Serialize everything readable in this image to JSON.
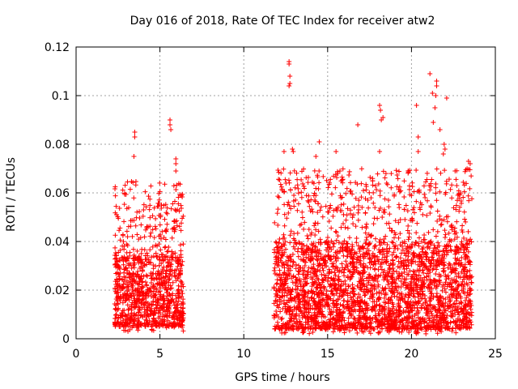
{
  "chart_data": {
    "type": "scatter",
    "title": "Day 016 of 2018, Rate Of TEC Index for receiver atw2",
    "xlabel": "GPS time / hours",
    "ylabel": "ROTI / TECUs",
    "xlim": [
      0,
      25
    ],
    "ylim": [
      0,
      0.12
    ],
    "x_ticks": [
      "0",
      "5",
      "10",
      "15",
      "20",
      "25"
    ],
    "y_ticks": [
      "0",
      "0.02",
      "0.04",
      "0.06",
      "0.08",
      "0.1",
      "0.12"
    ],
    "grid": true,
    "marker": "+",
    "color": "#ff0000",
    "segments": [
      {
        "x_start": 2.3,
        "x_end": 6.4,
        "base_y": [
          0.005,
          0.035
        ],
        "typical_peak": 0.065
      },
      {
        "x_start": 11.8,
        "x_end": 23.6,
        "base_y": [
          0.004,
          0.04
        ],
        "typical_peak": 0.07
      }
    ],
    "outliers": [
      {
        "x": 3.5,
        "y": 0.085
      },
      {
        "x": 3.5,
        "y": 0.083
      },
      {
        "x": 3.45,
        "y": 0.075
      },
      {
        "x": 5.6,
        "y": 0.09
      },
      {
        "x": 5.6,
        "y": 0.088
      },
      {
        "x": 5.65,
        "y": 0.086
      },
      {
        "x": 5.95,
        "y": 0.074
      },
      {
        "x": 5.95,
        "y": 0.072
      },
      {
        "x": 5.95,
        "y": 0.069
      },
      {
        "x": 12.7,
        "y": 0.114
      },
      {
        "x": 12.7,
        "y": 0.113
      },
      {
        "x": 12.75,
        "y": 0.108
      },
      {
        "x": 12.75,
        "y": 0.105
      },
      {
        "x": 12.7,
        "y": 0.104
      },
      {
        "x": 12.9,
        "y": 0.078
      },
      {
        "x": 12.95,
        "y": 0.077
      },
      {
        "x": 12.4,
        "y": 0.077
      },
      {
        "x": 14.5,
        "y": 0.081
      },
      {
        "x": 14.3,
        "y": 0.075
      },
      {
        "x": 15.5,
        "y": 0.077
      },
      {
        "x": 16.8,
        "y": 0.088
      },
      {
        "x": 18.1,
        "y": 0.096
      },
      {
        "x": 18.15,
        "y": 0.094
      },
      {
        "x": 18.2,
        "y": 0.09
      },
      {
        "x": 18.3,
        "y": 0.091
      },
      {
        "x": 18.1,
        "y": 0.077
      },
      {
        "x": 20.3,
        "y": 0.096
      },
      {
        "x": 20.4,
        "y": 0.083
      },
      {
        "x": 20.4,
        "y": 0.077
      },
      {
        "x": 21.1,
        "y": 0.109
      },
      {
        "x": 21.25,
        "y": 0.101
      },
      {
        "x": 21.5,
        "y": 0.106
      },
      {
        "x": 21.5,
        "y": 0.104
      },
      {
        "x": 21.45,
        "y": 0.1
      },
      {
        "x": 21.4,
        "y": 0.095
      },
      {
        "x": 22.1,
        "y": 0.099
      },
      {
        "x": 21.3,
        "y": 0.089
      },
      {
        "x": 21.7,
        "y": 0.086
      },
      {
        "x": 21.95,
        "y": 0.08
      },
      {
        "x": 22.0,
        "y": 0.078
      },
      {
        "x": 21.9,
        "y": 0.076
      },
      {
        "x": 23.4,
        "y": 0.073
      },
      {
        "x": 23.5,
        "y": 0.072
      },
      {
        "x": 22.6,
        "y": 0.069
      },
      {
        "x": 22.7,
        "y": 0.063
      }
    ]
  }
}
